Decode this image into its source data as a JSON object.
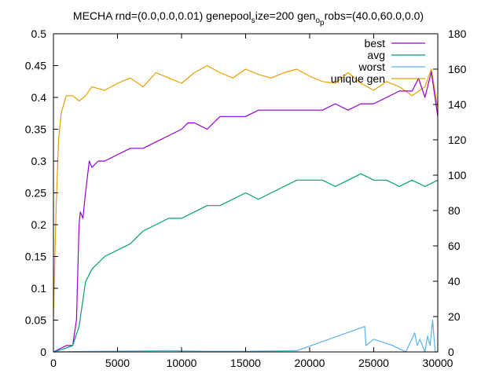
{
  "chart_data": {
    "type": "line",
    "title": "MECHA rnd=(0.0,0.0,0.01) genepool",
    "title_sub1": "s",
    "title_mid": "ize=200 gen",
    "title_sub2": "o",
    "title_sub3": "p",
    "title_sub4": "p",
    "title_end": "robs=(40.0,60.0,0.0)",
    "xlim": [
      0,
      30000
    ],
    "ylim": [
      0,
      0.5
    ],
    "y2lim": [
      0,
      180
    ],
    "x_ticks": [
      0,
      5000,
      10000,
      15000,
      20000,
      25000,
      30000
    ],
    "y_ticks": [
      0,
      0.05,
      0.1,
      0.15,
      0.2,
      0.25,
      0.3,
      0.35,
      0.4,
      0.45,
      0.5
    ],
    "y2_ticks": [
      0,
      20,
      40,
      60,
      80,
      100,
      120,
      140,
      160,
      180
    ],
    "legend_position": "top-right",
    "series": [
      {
        "name": "best",
        "color": "#9400d3",
        "axis": "y",
        "x": [
          0,
          500,
          1000,
          1500,
          1800,
          2000,
          2100,
          2300,
          2500,
          2800,
          3000,
          3500,
          4000,
          5000,
          6000,
          7000,
          8000,
          9000,
          10000,
          10500,
          11000,
          12000,
          13000,
          14000,
          15000,
          16000,
          17000,
          18000,
          19000,
          20000,
          21000,
          22000,
          23000,
          24000,
          25000,
          26000,
          27000,
          28000,
          28500,
          29000,
          29500,
          30000
        ],
        "values": [
          0.0,
          0.005,
          0.01,
          0.01,
          0.05,
          0.2,
          0.22,
          0.21,
          0.25,
          0.3,
          0.29,
          0.3,
          0.3,
          0.31,
          0.32,
          0.32,
          0.33,
          0.34,
          0.35,
          0.36,
          0.36,
          0.35,
          0.37,
          0.37,
          0.37,
          0.38,
          0.38,
          0.38,
          0.38,
          0.38,
          0.38,
          0.39,
          0.38,
          0.39,
          0.39,
          0.4,
          0.41,
          0.41,
          0.43,
          0.4,
          0.44,
          0.37
        ]
      },
      {
        "name": "avg",
        "color": "#009e73",
        "axis": "y",
        "x": [
          0,
          500,
          1000,
          1500,
          2000,
          2500,
          3000,
          4000,
          5000,
          6000,
          7000,
          8000,
          9000,
          10000,
          11000,
          12000,
          13000,
          14000,
          15000,
          16000,
          17000,
          18000,
          19000,
          20000,
          21000,
          22000,
          23000,
          24000,
          25000,
          26000,
          27000,
          28000,
          29000,
          30000
        ],
        "values": [
          0.0,
          0.003,
          0.006,
          0.01,
          0.04,
          0.11,
          0.13,
          0.15,
          0.16,
          0.17,
          0.19,
          0.2,
          0.21,
          0.21,
          0.22,
          0.23,
          0.23,
          0.24,
          0.25,
          0.24,
          0.25,
          0.26,
          0.27,
          0.27,
          0.27,
          0.26,
          0.27,
          0.28,
          0.27,
          0.27,
          0.26,
          0.27,
          0.26,
          0.27
        ]
      },
      {
        "name": "worst",
        "color": "#56b4e9",
        "axis": "y",
        "x": [
          0,
          4000,
          9000,
          12000,
          15000,
          19000,
          24300,
          24400,
          25000,
          26500,
          27500,
          28200,
          28400,
          28600,
          29000,
          29200,
          29400,
          29600,
          29800,
          30000
        ],
        "values": [
          0.0,
          0.001,
          0.002,
          0.001,
          0.001,
          0.002,
          0.04,
          0.01,
          0.02,
          0.01,
          0.0,
          0.03,
          0.01,
          0.02,
          0.0,
          0.025,
          0.01,
          0.05,
          0.0,
          0.0
        ]
      },
      {
        "name": "unique gen",
        "color": "#e69f00",
        "axis": "y2",
        "x": [
          0,
          200,
          400,
          600,
          800,
          1000,
          1500,
          2000,
          2500,
          3000,
          4000,
          5000,
          6000,
          7000,
          8000,
          9000,
          10000,
          11000,
          12000,
          13000,
          14000,
          15000,
          16000,
          17000,
          18000,
          19000,
          20000,
          21000,
          22000,
          23000,
          24000,
          25000,
          26000,
          27000,
          28000,
          29000,
          29500,
          30000
        ],
        "values": [
          20,
          80,
          120,
          135,
          140,
          145,
          145,
          142,
          145,
          150,
          148,
          152,
          155,
          150,
          158,
          155,
          152,
          158,
          162,
          158,
          155,
          160,
          157,
          155,
          158,
          160,
          156,
          153,
          152,
          158,
          152,
          148,
          153,
          150,
          145,
          150,
          160,
          138
        ]
      }
    ]
  }
}
